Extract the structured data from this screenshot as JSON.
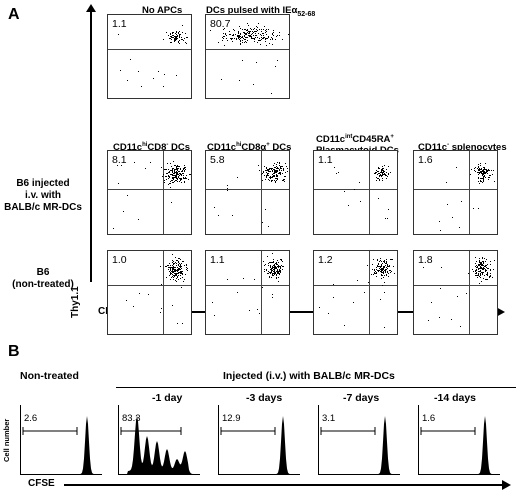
{
  "panel_a": {
    "letter": "A",
    "top_row": [
      {
        "title": "No APCs",
        "value": "1.1"
      },
      {
        "title": "DCs pulsed with IEα52-68",
        "value": "80.7"
      }
    ],
    "column_headers": [
      "CD11chiCD8⁻ DCs",
      "CD11chiCD8α⁺ DCs",
      "CD11cintCD45RA⁺ Plasmacytoid DCs",
      "CD11c⁻ splenocytes"
    ],
    "row_labels": [
      "B6 injected i.v. with BALB/c MR-DCs",
      "B6 (non-treated)"
    ],
    "injected_values": [
      "8.1",
      "5.8",
      "1.1",
      "1.6"
    ],
    "nontreated_values": [
      "1.0",
      "1.1",
      "1.2",
      "1.8"
    ],
    "y_axis": "Thy1.1",
    "x_axis": "CFSE"
  },
  "panel_b": {
    "letter": "B",
    "group_label": "Injected (i.v.) with BALB/c MR-DCs",
    "y_axis": "Cell number",
    "x_axis": "CFSE",
    "histograms": [
      {
        "title": "Non-treated",
        "value": "2.6"
      },
      {
        "title": "-1 day",
        "value": "83.3"
      },
      {
        "title": "-3 days",
        "value": "12.9"
      },
      {
        "title": "-7 days",
        "value": "3.1"
      },
      {
        "title": "-14 days",
        "value": "1.6"
      }
    ]
  }
}
